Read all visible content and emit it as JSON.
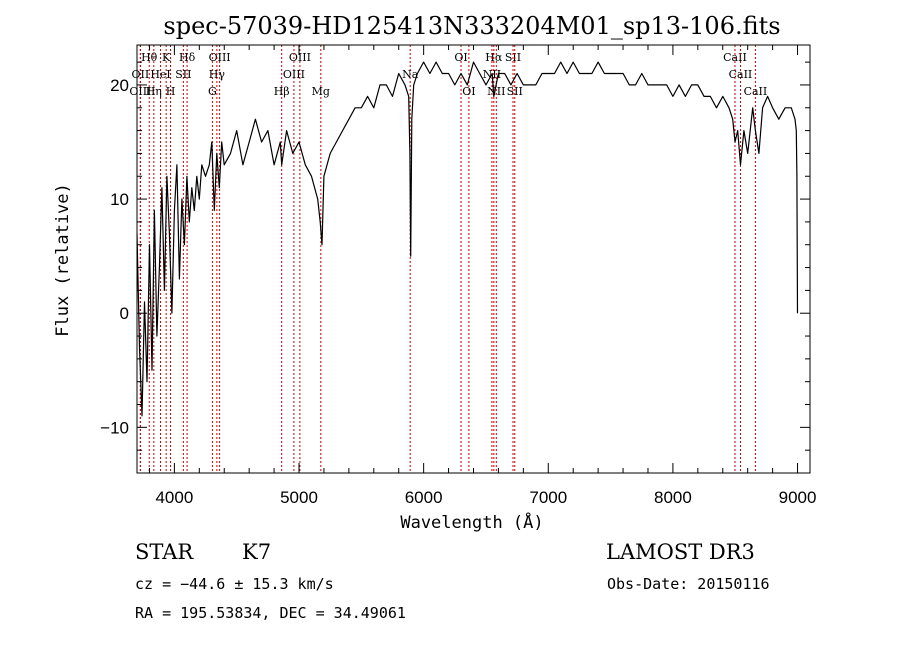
{
  "chart_data": {
    "type": "line",
    "title": "spec-57039-HD125413N333204M01_sp13-106.fits",
    "xlabel": "Wavelength (Å)",
    "ylabel": "Flux (relative)",
    "xlim": [
      3700,
      9100
    ],
    "ylim": [
      -14,
      23.5
    ],
    "xticks": [
      4000,
      5000,
      6000,
      7000,
      8000,
      9000
    ],
    "xtick_labels": [
      "4000",
      "5000",
      "6000",
      "7000",
      "8000",
      "9000"
    ],
    "yticks": [
      -10,
      0,
      10,
      20
    ],
    "ytick_labels": [
      "−10",
      "0",
      "10",
      "20"
    ],
    "series": [
      {
        "name": "flux",
        "x": [
          3700,
          3720,
          3740,
          3760,
          3780,
          3800,
          3820,
          3840,
          3860,
          3880,
          3900,
          3920,
          3940,
          3960,
          3980,
          4000,
          4020,
          4040,
          4060,
          4080,
          4100,
          4120,
          4140,
          4160,
          4180,
          4200,
          4220,
          4250,
          4280,
          4300,
          4320,
          4340,
          4360,
          4380,
          4400,
          4450,
          4500,
          4550,
          4600,
          4650,
          4700,
          4750,
          4800,
          4850,
          4861,
          4900,
          4950,
          5000,
          5050,
          5100,
          5150,
          5170,
          5184,
          5200,
          5250,
          5300,
          5350,
          5400,
          5450,
          5500,
          5550,
          5600,
          5650,
          5700,
          5750,
          5800,
          5850,
          5880,
          5890,
          5896,
          5905,
          5920,
          5950,
          6000,
          6050,
          6100,
          6150,
          6200,
          6250,
          6300,
          6350,
          6400,
          6450,
          6500,
          6550,
          6563,
          6600,
          6650,
          6700,
          6750,
          6800,
          6850,
          6900,
          6950,
          7000,
          7050,
          7100,
          7150,
          7200,
          7250,
          7300,
          7350,
          7400,
          7450,
          7500,
          7550,
          7600,
          7650,
          7700,
          7750,
          7800,
          7850,
          7900,
          7950,
          8000,
          8050,
          8100,
          8150,
          8200,
          8250,
          8300,
          8350,
          8400,
          8450,
          8480,
          8498,
          8520,
          8542,
          8570,
          8600,
          8640,
          8662,
          8690,
          8720,
          8760,
          8800,
          8850,
          8900,
          8950,
          8980,
          8990,
          8995,
          9000
        ],
        "y": [
          7,
          -3,
          -9,
          1,
          -6,
          6,
          -5,
          9,
          -2,
          4,
          11,
          2,
          12,
          7,
          0,
          9,
          13,
          3,
          10,
          6,
          12,
          8,
          11,
          9,
          12,
          10,
          13,
          12,
          13,
          15,
          9,
          14,
          11,
          15,
          13,
          14,
          16,
          13,
          15,
          17,
          15,
          16,
          13,
          15,
          13,
          16,
          14,
          15,
          13,
          12,
          10,
          8,
          6,
          12,
          14,
          15,
          16,
          17,
          18,
          18,
          19,
          18,
          20,
          20,
          19,
          21,
          20,
          19,
          14,
          5,
          17,
          20,
          21,
          22,
          21,
          22,
          21,
          21,
          20,
          21,
          20,
          22,
          21,
          20,
          21,
          19,
          21,
          21,
          20,
          21,
          20,
          20,
          20,
          21,
          21,
          21,
          22,
          21,
          22,
          21,
          21,
          21,
          22,
          21,
          21,
          21,
          21,
          20,
          20,
          21,
          20,
          20,
          20,
          20,
          19,
          20,
          19,
          20,
          20,
          19,
          19,
          18,
          19,
          18,
          17,
          15,
          16,
          13,
          16,
          14,
          18,
          16,
          14,
          18,
          19,
          18,
          17,
          18,
          18,
          17,
          16,
          12,
          0
        ]
      }
    ],
    "spectral_lines": {
      "emission": [
        {
          "name": "Hθ",
          "x": 3798,
          "row": 0
        },
        {
          "name": "OII",
          "x": 3727,
          "row": 1
        },
        {
          "name": "OIII",
          "x": 3727,
          "row": 2
        },
        {
          "name": "K",
          "x": 3934,
          "row": 0
        },
        {
          "name": "HeI",
          "x": 3889,
          "row": 1
        },
        {
          "name": "Hη",
          "x": 3835,
          "row": 2
        },
        {
          "name": "Hδ",
          "x": 4102,
          "row": 0
        },
        {
          "name": "SII",
          "x": 4072,
          "row": 1
        },
        {
          "name": "H",
          "x": 3969,
          "row": 2
        },
        {
          "name": "OIII",
          "x": 4363,
          "row": 0
        },
        {
          "name": "Hγ",
          "x": 4341,
          "row": 1
        },
        {
          "name": "G",
          "x": 4305,
          "row": 2
        },
        {
          "name": "OIII",
          "x": 5007,
          "row": 0
        },
        {
          "name": "OIII",
          "x": 4959,
          "row": 1
        },
        {
          "name": "Hβ",
          "x": 4861,
          "row": 2
        },
        {
          "name": "Mg",
          "x": 5175,
          "row": 2
        },
        {
          "name": "Na",
          "x": 5892,
          "row": 1
        },
        {
          "name": "OI",
          "x": 6300,
          "row": 0
        },
        {
          "name": "OI",
          "x": 6363,
          "row": 2
        },
        {
          "name": "Hα",
          "x": 6563,
          "row": 0
        },
        {
          "name": "SII",
          "x": 6717,
          "row": 0
        },
        {
          "name": "NII",
          "x": 6548,
          "row": 1
        },
        {
          "name": "NII",
          "x": 6583,
          "row": 2
        },
        {
          "name": "SII",
          "x": 6731,
          "row": 2
        },
        {
          "name": "CaII",
          "x": 8498,
          "row": 0
        },
        {
          "name": "CaII",
          "x": 8542,
          "row": 1
        },
        {
          "name": "CaII",
          "x": 8662,
          "row": 2
        }
      ]
    }
  },
  "info": {
    "class": "STAR",
    "subclass": "K7",
    "survey": "LAMOST DR3",
    "cz": "cz = −44.6 ± 15.3 km/s",
    "obs_date": "Obs-Date: 20150116",
    "radec": "RA = 195.53834, DEC =  34.49061"
  }
}
